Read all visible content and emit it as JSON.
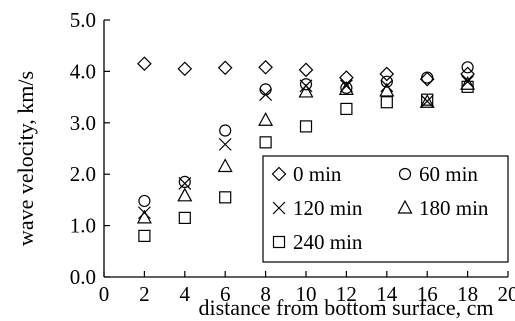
{
  "chart_data": {
    "type": "scatter",
    "title": "",
    "xlabel": "distance from bottom surface, cm",
    "ylabel": "wave velocity, km/s",
    "xlim": [
      0,
      20
    ],
    "ylim": [
      0.0,
      5.0
    ],
    "xticks": [
      "0",
      "2",
      "4",
      "6",
      "8",
      "10",
      "12",
      "14",
      "16",
      "18",
      "20"
    ],
    "yticks": [
      "0.0",
      "1.0",
      "2.0",
      "3.0",
      "4.0",
      "5.0"
    ],
    "grid": false,
    "legend_position": "bottom-right",
    "x": [
      2,
      4,
      6,
      8,
      10,
      12,
      14,
      16,
      18
    ],
    "series": [
      {
        "name": "0 min",
        "marker": "diamond",
        "values": [
          4.15,
          4.05,
          4.07,
          4.08,
          4.03,
          3.88,
          3.95,
          3.85,
          3.95
        ]
      },
      {
        "name": "60 min",
        "marker": "circle",
        "values": [
          1.48,
          1.85,
          2.85,
          3.65,
          3.75,
          3.68,
          3.8,
          3.88,
          4.08
        ]
      },
      {
        "name": "120 min",
        "marker": "cross",
        "values": [
          1.25,
          1.82,
          2.58,
          3.55,
          3.72,
          3.72,
          3.72,
          3.42,
          3.8
        ]
      },
      {
        "name": "180 min",
        "marker": "triangle",
        "values": [
          1.15,
          1.58,
          2.15,
          3.05,
          3.6,
          3.65,
          3.62,
          3.4,
          3.75
        ]
      },
      {
        "name": "240 min",
        "marker": "square",
        "values": [
          0.8,
          1.15,
          1.55,
          2.62,
          2.93,
          3.27,
          3.4,
          3.45,
          3.7
        ]
      }
    ]
  }
}
